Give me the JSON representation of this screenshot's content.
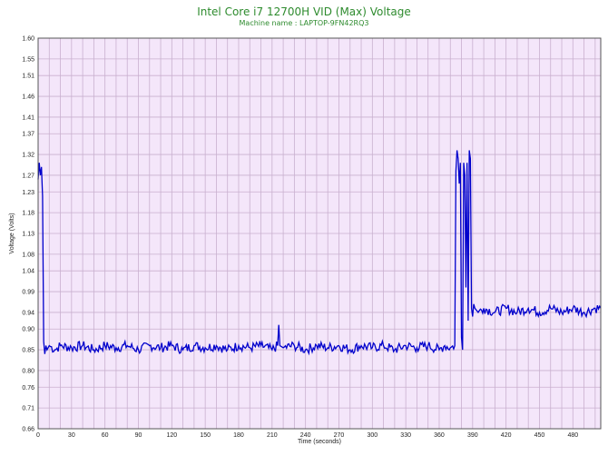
{
  "chart_data": {
    "type": "line",
    "title": "Intel Core i7 12700H VID (Max) Voltage",
    "subtitle": "Machine name : LAPTOP-9FN42RQ3",
    "xlabel": "Time (seconds)",
    "ylabel": "Voltage (Volts)",
    "xlim": [
      0,
      505
    ],
    "ylim": [
      0.66,
      1.6
    ],
    "x_ticks": [
      0,
      30,
      60,
      90,
      120,
      150,
      180,
      210,
      240,
      270,
      300,
      330,
      360,
      390,
      420,
      450,
      480
    ],
    "y_ticks": [
      "0.66",
      "0.71",
      "0.76",
      "0.80",
      "0.85",
      "0.90",
      "0.94",
      "0.99",
      "1.04",
      "1.08",
      "1.13",
      "1.18",
      "1.23",
      "1.27",
      "1.32",
      "1.37",
      "1.41",
      "1.46",
      "1.51",
      "1.55",
      "1.60"
    ],
    "grid": true,
    "legend": "none",
    "colors": {
      "line": "#0000cc",
      "plot_background": "#f4e6fa",
      "grid": "#c9b0cf",
      "title": "#2e8b2e"
    },
    "series": [
      {
        "x": [
          0,
          1,
          2,
          3,
          4,
          5,
          6,
          7,
          8,
          10,
          15,
          20,
          30,
          40,
          50,
          60,
          70,
          80,
          90,
          100,
          110,
          120,
          130,
          140,
          150,
          160,
          170,
          180,
          190,
          200,
          210,
          215,
          216,
          217,
          220,
          230,
          240,
          250,
          260,
          270,
          280,
          290,
          300,
          310,
          320,
          330,
          340,
          350,
          360,
          365,
          370,
          374,
          375,
          376,
          377,
          378,
          379,
          380,
          381,
          382,
          383,
          384,
          385,
          386,
          387,
          388,
          389,
          390,
          391,
          392,
          395,
          400,
          410,
          420,
          430,
          440,
          450,
          460,
          470,
          480,
          490,
          500,
          505
        ],
        "y": [
          1.26,
          1.3,
          1.27,
          1.29,
          1.22,
          0.87,
          0.84,
          0.86,
          0.85,
          0.86,
          0.85,
          0.86,
          0.855,
          0.86,
          0.85,
          0.86,
          0.855,
          0.86,
          0.85,
          0.86,
          0.855,
          0.86,
          0.85,
          0.86,
          0.855,
          0.86,
          0.85,
          0.86,
          0.855,
          0.86,
          0.85,
          0.86,
          0.91,
          0.86,
          0.855,
          0.86,
          0.85,
          0.86,
          0.855,
          0.86,
          0.85,
          0.86,
          0.855,
          0.86,
          0.85,
          0.86,
          0.855,
          0.86,
          0.85,
          0.86,
          0.855,
          0.86,
          1.28,
          1.33,
          1.31,
          1.25,
          1.3,
          0.88,
          0.85,
          1.3,
          1.27,
          1.0,
          1.3,
          0.92,
          1.33,
          1.31,
          0.95,
          0.93,
          0.96,
          0.95,
          0.94,
          0.95,
          0.94,
          0.95,
          0.94,
          0.95,
          0.94,
          0.95,
          0.94,
          0.95,
          0.94,
          0.95,
          0.95
        ]
      }
    ]
  }
}
